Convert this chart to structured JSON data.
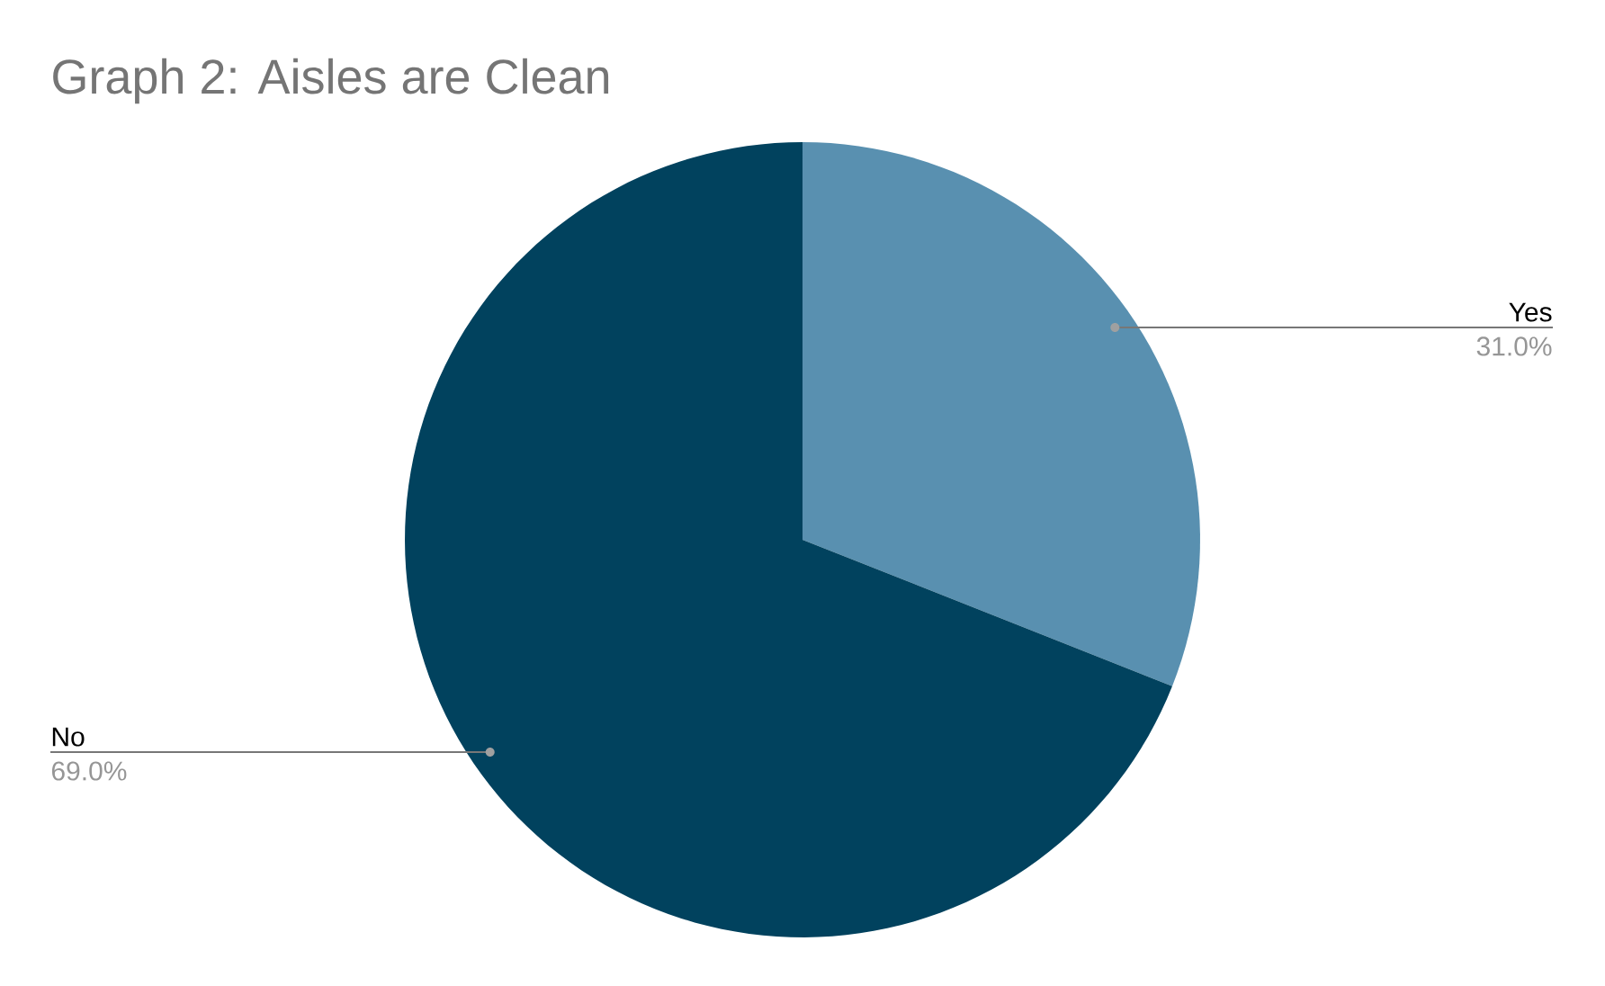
{
  "chart_data": {
    "type": "pie",
    "title": "Graph 2: Aisles are Clean",
    "categories": [
      "Yes",
      "No"
    ],
    "values": [
      31.0,
      69.0
    ],
    "colors": [
      "#5990b0",
      "#01425e"
    ],
    "value_labels": [
      "31.0%",
      "69.0%"
    ]
  }
}
